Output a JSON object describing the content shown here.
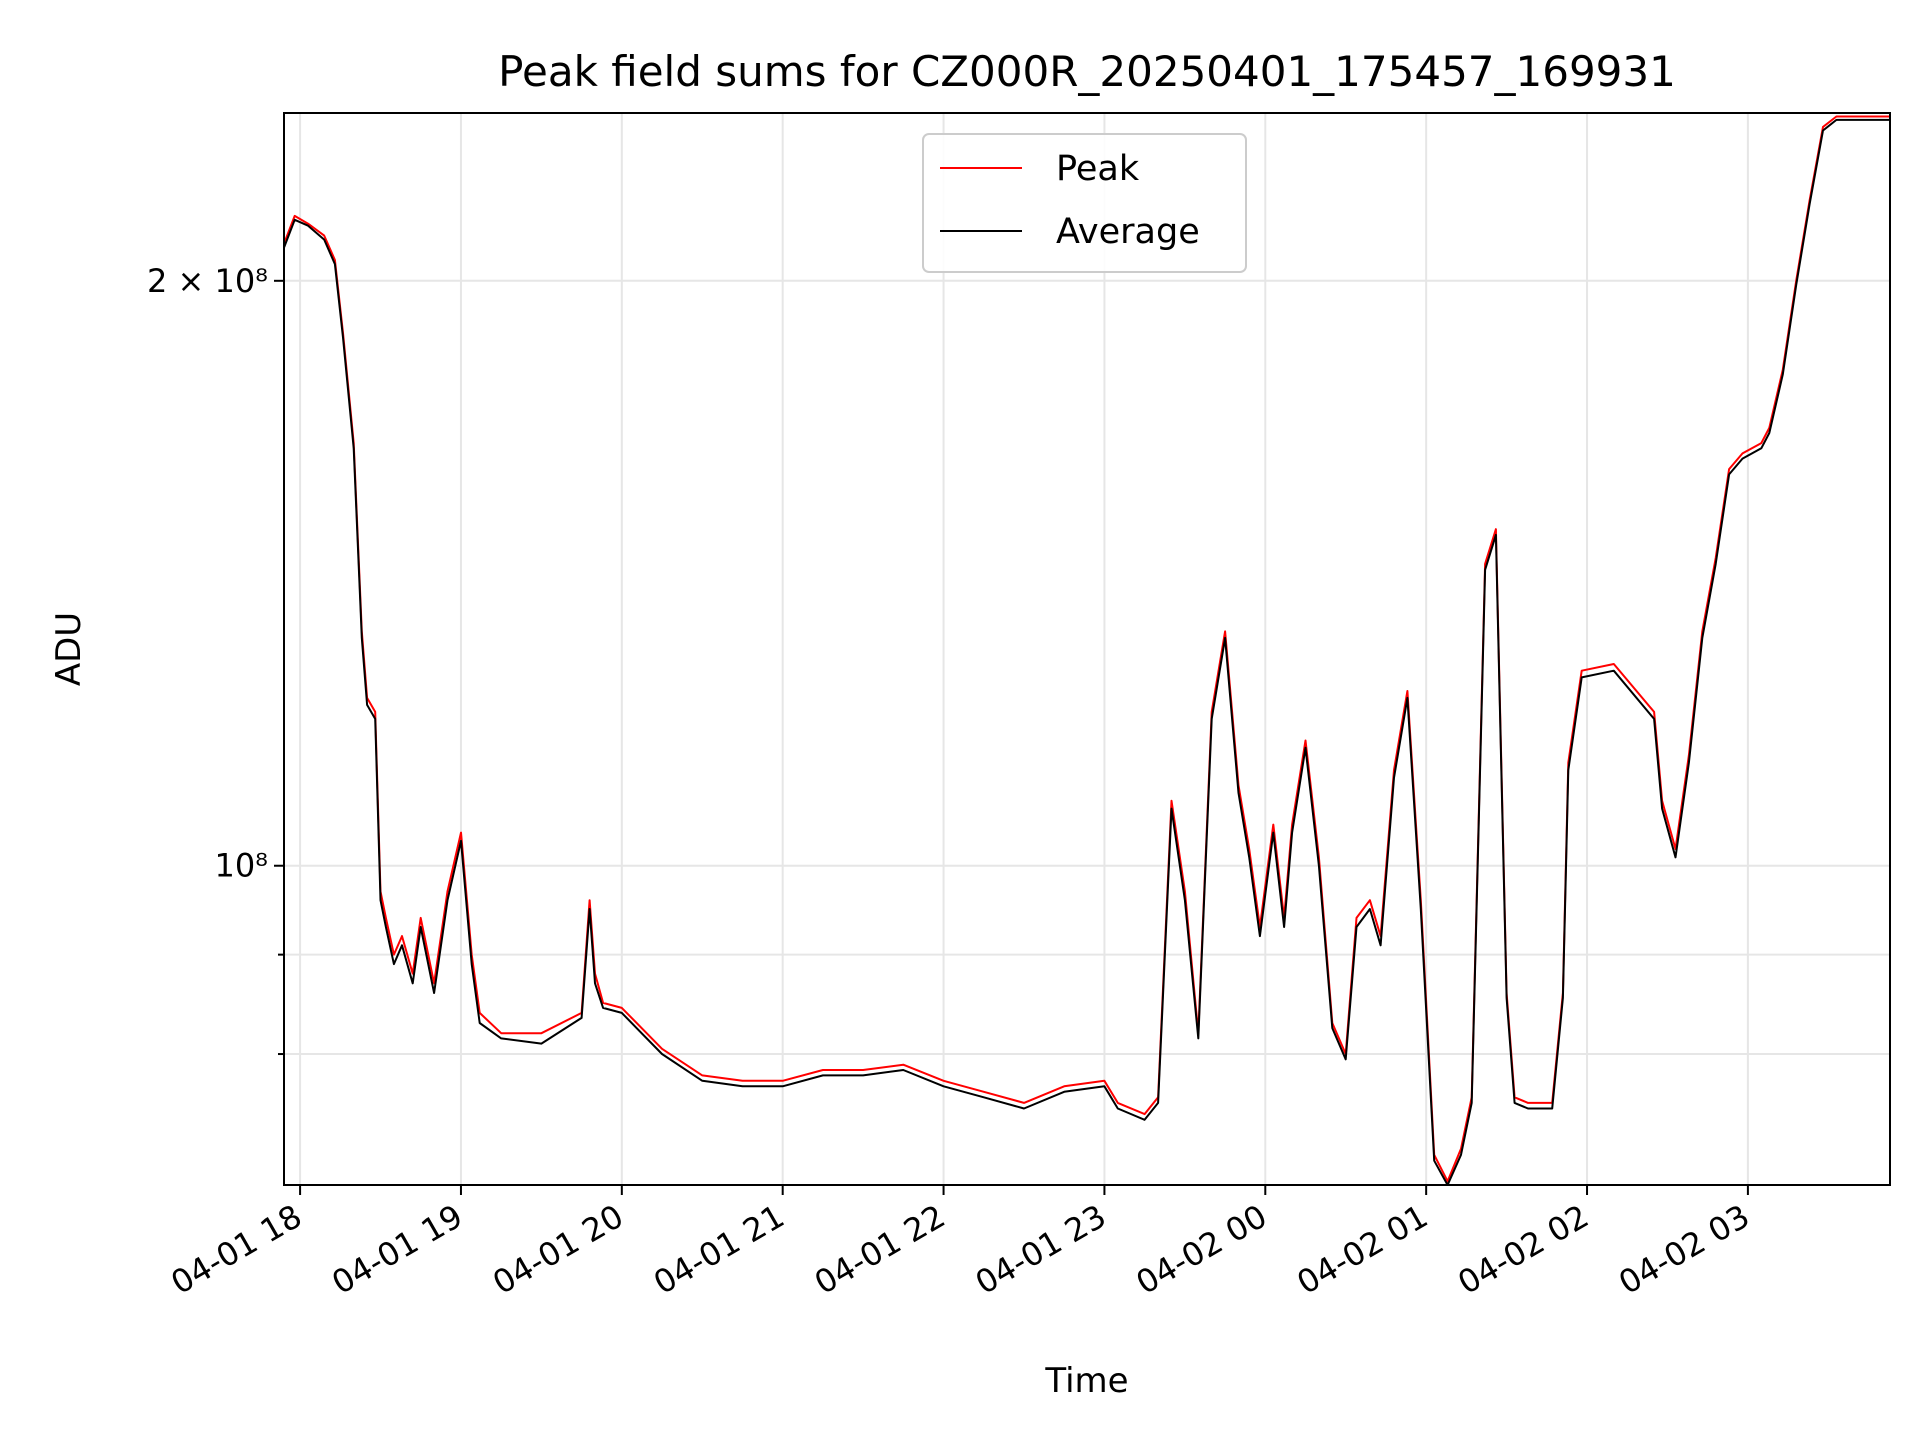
{
  "chart_data": {
    "type": "line",
    "title": "Peak field sums for CZ000R_20250401_175457_169931",
    "xlabel": "Time",
    "ylabel": "ADU",
    "x_scale": "time",
    "y_scale": "log",
    "xlim": [
      "04-01 17:54",
      "04-02 03:53"
    ],
    "ylim": [
      68500000,
      244000000
    ],
    "x_ticks": [
      {
        "value": "04-01 18:00",
        "label": "04-01 18"
      },
      {
        "value": "04-01 19:00",
        "label": "04-01 19"
      },
      {
        "value": "04-01 20:00",
        "label": "04-01 20"
      },
      {
        "value": "04-01 21:00",
        "label": "04-01 21"
      },
      {
        "value": "04-01 22:00",
        "label": "04-01 22"
      },
      {
        "value": "04-01 23:00",
        "label": "04-01 23"
      },
      {
        "value": "04-02 00:00",
        "label": "04-02 00"
      },
      {
        "value": "04-02 01:00",
        "label": "04-02 01"
      },
      {
        "value": "04-02 02:00",
        "label": "04-02 02"
      },
      {
        "value": "04-02 03:00",
        "label": "04-02 03"
      }
    ],
    "y_ticks": [
      {
        "value": 100000000,
        "label": "10⁸",
        "major": true
      },
      {
        "value": 200000000,
        "label": "2 × 10⁸",
        "major": true
      },
      {
        "value": 80000000,
        "label": "",
        "major": false
      },
      {
        "value": 90000000,
        "label": "",
        "major": false
      }
    ],
    "grid": true,
    "legend_position": "upper-center",
    "colors": {
      "Peak": "#ff0000",
      "Average": "#000000"
    },
    "x": [
      "04-01 17:54",
      "04-01 17:58",
      "04-01 18:03",
      "04-01 18:09",
      "04-01 18:13",
      "04-01 18:16",
      "04-01 18:20",
      "04-01 18:23",
      "04-01 18:25",
      "04-01 18:28",
      "04-01 18:30",
      "04-01 18:32",
      "04-01 18:35",
      "04-01 18:38",
      "04-01 18:42",
      "04-01 18:45",
      "04-01 18:50",
      "04-01 18:55",
      "04-01 19:00",
      "04-01 19:04",
      "04-01 19:07",
      "04-01 19:15",
      "04-01 19:30",
      "04-01 19:45",
      "04-01 19:48",
      "04-01 19:50",
      "04-01 19:53",
      "04-01 20:00",
      "04-01 20:15",
      "04-01 20:30",
      "04-01 20:45",
      "04-01 21:00",
      "04-01 21:15",
      "04-01 21:30",
      "04-01 21:45",
      "04-01 22:00",
      "04-01 22:15",
      "04-01 22:30",
      "04-01 22:45",
      "04-01 23:00",
      "04-01 23:05",
      "04-01 23:15",
      "04-01 23:20",
      "04-01 23:25",
      "04-01 23:30",
      "04-01 23:35",
      "04-01 23:40",
      "04-01 23:45",
      "04-01 23:50",
      "04-01 23:54",
      "04-01 23:58",
      "04-02 00:03",
      "04-02 00:07",
      "04-02 00:10",
      "04-02 00:15",
      "04-02 00:20",
      "04-02 00:25",
      "04-02 00:30",
      "04-02 00:34",
      "04-02 00:39",
      "04-02 00:43",
      "04-02 00:48",
      "04-02 00:53",
      "04-02 00:58",
      "04-02 01:03",
      "04-02 01:08",
      "04-02 01:13",
      "04-02 01:17",
      "04-02 01:22",
      "04-02 01:26",
      "04-02 01:30",
      "04-02 01:33",
      "04-02 01:38",
      "04-02 01:43",
      "04-02 01:47",
      "04-02 01:51",
      "04-02 01:53",
      "04-02 01:58",
      "04-02 02:10",
      "04-02 02:25",
      "04-02 02:28",
      "04-02 02:33",
      "04-02 02:38",
      "04-02 02:43",
      "04-02 02:48",
      "04-02 02:53",
      "04-02 02:58",
      "04-02 03:05",
      "04-02 03:08",
      "04-02 03:13",
      "04-02 03:18",
      "04-02 03:23",
      "04-02 03:28",
      "04-02 03:33",
      "04-02 03:38",
      "04-02 03:43",
      "04-02 03:48",
      "04-02 03:53"
    ],
    "series": [
      {
        "name": "Peak",
        "values": [
          209000000,
          216000000,
          214000000,
          211000000,
          205000000,
          188000000,
          165000000,
          132000000,
          122000000,
          120000000,
          97000000,
          94000000,
          90000000,
          92000000,
          88000000,
          94000000,
          87000000,
          97000000,
          104000000,
          90000000,
          84000000,
          82000000,
          82000000,
          84000000,
          96000000,
          88000000,
          85000000,
          84500000,
          80500000,
          78000000,
          77500000,
          77500000,
          78500000,
          78500000,
          79000000,
          77500000,
          76500000,
          75500000,
          77000000,
          77500000,
          75500000,
          74500000,
          76000000,
          108000000,
          97000000,
          82000000,
          120000000,
          132000000,
          110000000,
          102000000,
          93000000,
          105000000,
          94000000,
          105000000,
          116000000,
          101000000,
          83000000,
          80000000,
          94000000,
          96000000,
          92000000,
          112000000,
          123000000,
          96000000,
          71000000,
          68800000,
          71500000,
          76000000,
          143000000,
          149000000,
          86000000,
          76000000,
          75500000,
          75500000,
          75500000,
          86000000,
          113000000,
          126000000,
          127000000,
          120000000,
          108000000,
          102000000,
          114000000,
          132000000,
          144000000,
          160000000,
          163000000,
          165000000,
          168000000,
          180000000,
          200000000,
          220000000,
          240000000,
          243000000,
          243000000,
          243000000,
          243000000,
          243000000
        ]
      },
      {
        "name": "Average",
        "values": [
          208000000,
          215000000,
          213500000,
          210000000,
          204000000,
          187000000,
          164000000,
          131000000,
          121000000,
          119000000,
          96000000,
          93000000,
          89000000,
          91000000,
          87000000,
          93000000,
          86000000,
          96000000,
          103000000,
          89000000,
          83000000,
          81500000,
          81000000,
          83500000,
          95000000,
          87000000,
          84500000,
          84000000,
          80000000,
          77500000,
          77000000,
          77000000,
          78000000,
          78000000,
          78500000,
          77000000,
          76000000,
          75000000,
          76500000,
          77000000,
          75000000,
          74000000,
          75500000,
          107000000,
          96000000,
          81500000,
          119000000,
          131000000,
          109000000,
          101000000,
          92000000,
          104000000,
          93000000,
          104000000,
          115000000,
          100000000,
          82500000,
          79500000,
          93000000,
          95000000,
          91000000,
          111000000,
          122000000,
          95000000,
          70500000,
          68500000,
          71000000,
          75500000,
          142000000,
          148000000,
          85500000,
          75500000,
          75000000,
          75000000,
          75000000,
          85500000,
          112000000,
          125000000,
          126000000,
          119000000,
          107000000,
          101000000,
          113000000,
          131000000,
          143000000,
          159000000,
          162000000,
          164000000,
          167000000,
          179000000,
          199000000,
          219000000,
          239000000,
          242000000,
          242000000,
          242000000,
          242000000,
          242000000
        ]
      }
    ]
  }
}
